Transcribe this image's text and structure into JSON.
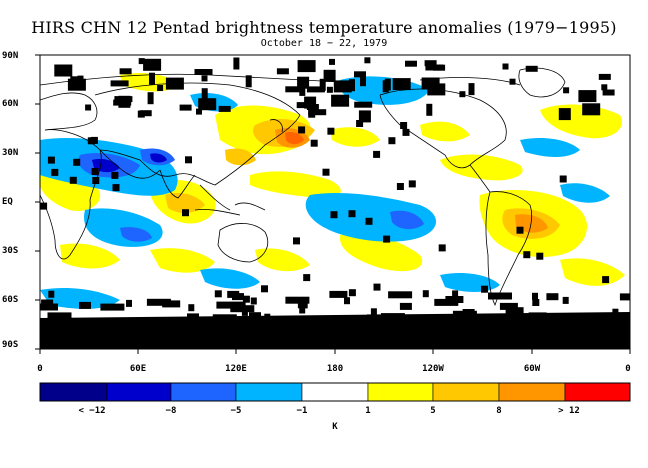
{
  "title": "HIRS CHN 12 Pentad brightness temperature anomalies (1979−1995)",
  "subtitle": "October 18 − 22, 1979",
  "lat_labels": [
    "90N",
    "60N",
    "30N",
    "EQ",
    "30S",
    "60S",
    "90S"
  ],
  "lon_labels": [
    "0",
    "60E",
    "120E",
    "180",
    "120W",
    "60W",
    "0"
  ],
  "colorbar": {
    "colors": [
      "#00008b",
      "#0000cd",
      "#1e64ff",
      "#00b4ff",
      "#ffffff",
      "#ffff00",
      "#ffc800",
      "#ff9600",
      "#ff6400",
      "#ff0000"
    ],
    "labels": [
      "< −12",
      "−8",
      "−5",
      "−1",
      "1",
      "5",
      "8",
      "> 12"
    ],
    "unit": "K"
  },
  "legend_colors": {
    "missing": "#000000",
    "coast": "#000000",
    "background": "#ffffff"
  }
}
